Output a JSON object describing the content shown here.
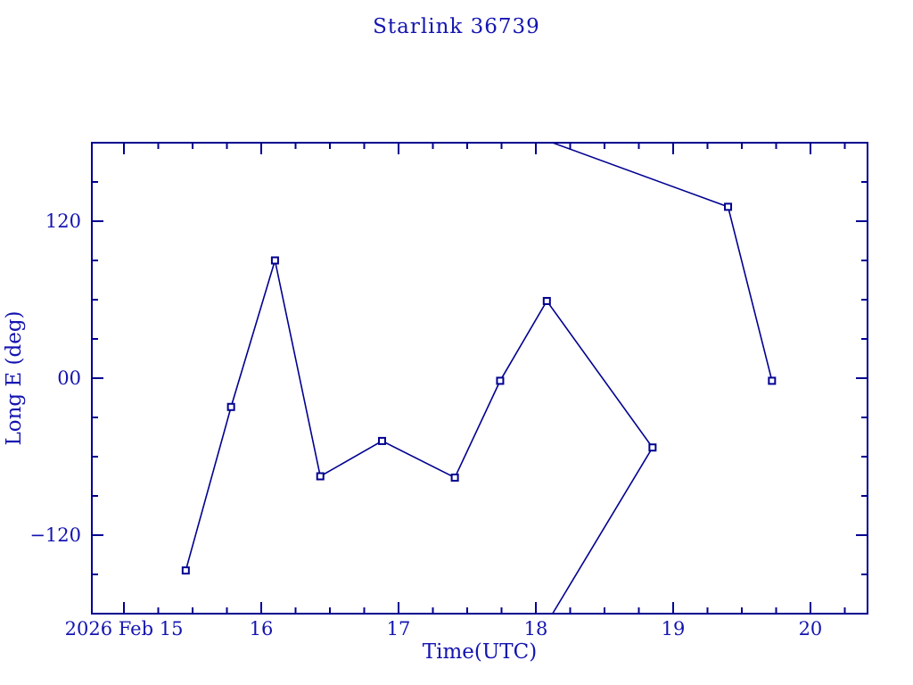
{
  "page": {
    "background": "#ffffff"
  },
  "colors": {
    "line": "#000090",
    "text": "#1414b0",
    "background": "#ffffff"
  },
  "chart_data": {
    "type": "line",
    "title": "Starlink 36739",
    "xlabel": "Time(UTC)",
    "ylabel": "Long E (deg)",
    "xlim": [
      14.766,
      20.416
    ],
    "ylim": [
      -180,
      180
    ],
    "x_unit": "day of month, 2026 Feb, UTC",
    "grid": false,
    "legend": "none",
    "wrap_at": 180,
    "x_major_ticks": [
      {
        "v": 15,
        "label": "2026 Feb 15"
      },
      {
        "v": 16,
        "label": "16"
      },
      {
        "v": 17,
        "label": "17"
      },
      {
        "v": 18,
        "label": "18"
      },
      {
        "v": 19,
        "label": "19"
      },
      {
        "v": 20,
        "label": "20"
      }
    ],
    "x_minor_step": 0.25,
    "y_major_ticks": [
      {
        "v": 120,
        "label": "120"
      },
      {
        "v": 0,
        "label": "00"
      },
      {
        "v": -120,
        "label": "−120"
      }
    ],
    "y_minor_step": 30,
    "series": [
      {
        "name": "Long E",
        "marker": "open-square",
        "points": [
          [
            15.45,
            -147
          ],
          [
            15.78,
            -22
          ],
          [
            16.1,
            90
          ],
          [
            16.43,
            -75
          ],
          [
            16.88,
            -48
          ],
          [
            17.41,
            -76
          ],
          [
            17.74,
            -2
          ],
          [
            18.08,
            59
          ],
          [
            18.85,
            -53
          ],
          [
            19.4,
            131
          ],
          [
            19.72,
            -2
          ]
        ]
      }
    ]
  }
}
